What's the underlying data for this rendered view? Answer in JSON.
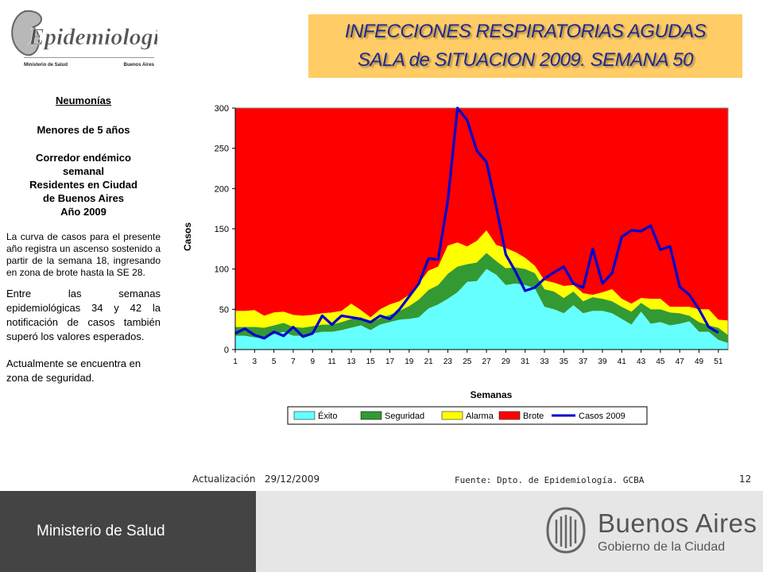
{
  "header": {
    "logo_text": "Epidemiología",
    "logo_ministry": "Ministerio de Salud",
    "logo_city": "Buenos Aires",
    "title_line1": "INFECCIONES RESPIRATORIAS AGUDAS",
    "title_line2": "SALA de SITUACION 2009. SEMANA 50"
  },
  "sidebar": {
    "heading": "Neumonías",
    "subheading": "Menores de 5 años",
    "description_lines": [
      "Corredor endémico",
      "semanal",
      "Residentes en Ciudad",
      "de Buenos Aires",
      "Año 2009"
    ],
    "paragraph1": "La curva de casos para el presente año registra un ascenso sostenido a partir de la semana 18, ingresando en zona de brote hasta la SE 28.",
    "paragraph2": "Entre las semanas epidemiológicas 34 y 42 la notificación de casos también superó los valores esperados.",
    "paragraph3": "Actualmente se encuentra en zona de seguridad."
  },
  "footer": {
    "update_label": "Actualización",
    "update_date": "29/12/2009",
    "source": "Fuente: Dpto. de Epidemiología. GCBA",
    "page_number": "12"
  },
  "bottom_bar": {
    "ministry": "Ministerio de Salud",
    "city_name": "Buenos Aires",
    "city_sub": "Gobierno de la Ciudad"
  },
  "chart_data": {
    "type": "area",
    "xlabel": "Semanas",
    "ylabel": "Casos",
    "ylim": [
      0,
      300
    ],
    "yticks": [
      0,
      50,
      100,
      150,
      200,
      250,
      300
    ],
    "x": [
      1,
      2,
      3,
      4,
      5,
      6,
      7,
      8,
      9,
      10,
      11,
      12,
      13,
      14,
      15,
      16,
      17,
      18,
      19,
      20,
      21,
      22,
      23,
      24,
      25,
      26,
      27,
      28,
      29,
      30,
      31,
      32,
      33,
      34,
      35,
      36,
      37,
      38,
      39,
      40,
      41,
      42,
      43,
      44,
      45,
      46,
      47,
      48,
      49,
      50,
      51,
      52
    ],
    "xtick_labels": [
      "1",
      "3",
      "5",
      "7",
      "9",
      "11",
      "13",
      "15",
      "17",
      "19",
      "21",
      "23",
      "25",
      "27",
      "29",
      "31",
      "33",
      "35",
      "37",
      "39",
      "41",
      "43",
      "45",
      "47",
      "49",
      "51"
    ],
    "legend_position": "bottom",
    "colors": {
      "exito": "#66ffff",
      "seguridad": "#339933",
      "alarma": "#ffff00",
      "brote": "#ff0000",
      "casos": "#0000cc"
    },
    "series": [
      {
        "name": "Éxito",
        "role": "band",
        "cumulative": [
          17,
          17,
          15,
          14,
          19,
          22,
          17,
          17,
          20,
          22,
          22,
          24,
          27,
          30,
          24,
          31,
          34,
          37,
          38,
          40,
          51,
          56,
          63,
          71,
          84,
          85,
          100,
          93,
          80,
          82,
          80,
          76,
          53,
          50,
          45,
          55,
          45,
          48,
          48,
          45,
          38,
          31,
          47,
          32,
          34,
          30,
          32,
          35,
          22,
          22,
          12,
          8
        ]
      },
      {
        "name": "Seguridad",
        "role": "band",
        "cumulative": [
          28,
          28,
          28,
          27,
          30,
          33,
          28,
          27,
          29,
          31,
          31,
          34,
          38,
          40,
          33,
          39,
          43,
          48,
          54,
          62,
          74,
          80,
          94,
          103,
          106,
          108,
          120,
          110,
          101,
          102,
          100,
          95,
          75,
          72,
          64,
          72,
          60,
          65,
          63,
          60,
          53,
          47,
          58,
          50,
          50,
          46,
          45,
          42,
          34,
          30,
          27,
          18
        ]
      },
      {
        "name": "Alarma",
        "role": "band",
        "cumulative": [
          48,
          48,
          49,
          42,
          46,
          47,
          43,
          42,
          43,
          45,
          46,
          48,
          57,
          49,
          40,
          50,
          56,
          60,
          68,
          82,
          98,
          103,
          129,
          133,
          128,
          135,
          148,
          130,
          126,
          121,
          114,
          104,
          86,
          83,
          79,
          80,
          70,
          68,
          71,
          75,
          63,
          57,
          64,
          63,
          63,
          53,
          53,
          53,
          50,
          50,
          37,
          36
        ]
      },
      {
        "name": "Brote",
        "role": "band",
        "cumulative": [
          300,
          300,
          300,
          300,
          300,
          300,
          300,
          300,
          300,
          300,
          300,
          300,
          300,
          300,
          300,
          300,
          300,
          300,
          300,
          300,
          300,
          300,
          300,
          300,
          300,
          300,
          300,
          300,
          300,
          300,
          300,
          300,
          300,
          300,
          300,
          300,
          300,
          300,
          300,
          300,
          300,
          300,
          300,
          300,
          300,
          300,
          300,
          300,
          300,
          300,
          300,
          300
        ]
      },
      {
        "name": "Casos 2009",
        "role": "line",
        "values": [
          20,
          26,
          18,
          14,
          22,
          17,
          28,
          16,
          20,
          42,
          31,
          42,
          40,
          38,
          34,
          42,
          38,
          50,
          66,
          82,
          113,
          112,
          185,
          300,
          285,
          247,
          233,
          178,
          118,
          97,
          73,
          77,
          88,
          96,
          103,
          82,
          77,
          125,
          82,
          95,
          140,
          148,
          147,
          154,
          124,
          128,
          78,
          68,
          50,
          28,
          21,
          null
        ]
      }
    ]
  }
}
